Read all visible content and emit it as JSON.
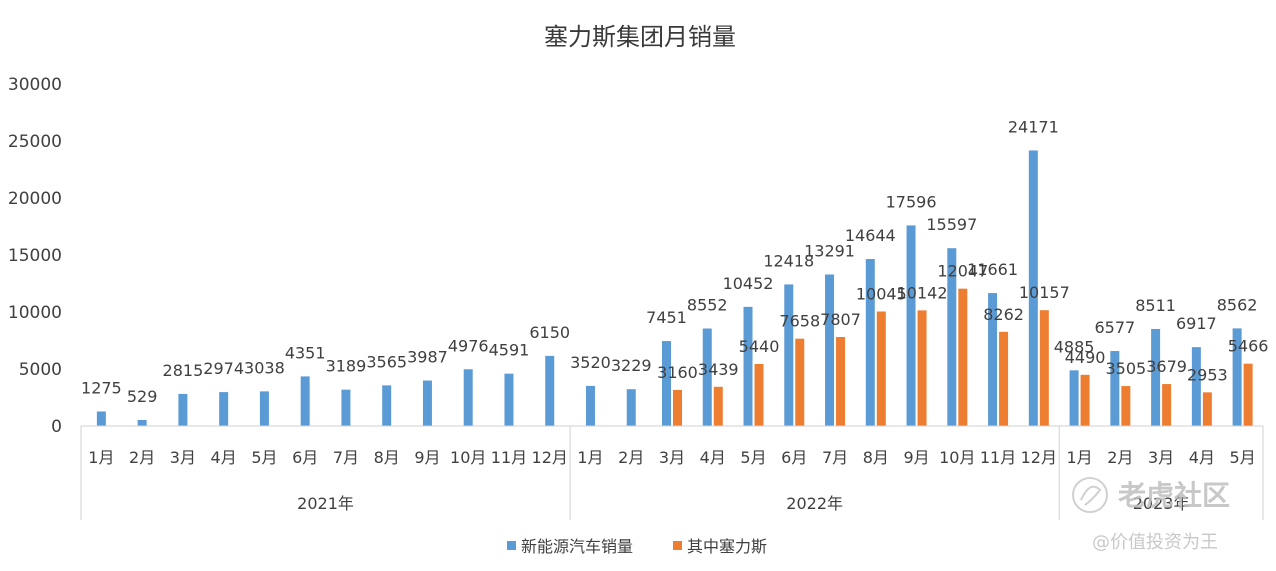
{
  "chart_data": {
    "type": "bar",
    "title": "塞力斯集团月销量",
    "ylim": [
      0,
      30000
    ],
    "yticks": [
      0,
      5000,
      10000,
      15000,
      20000,
      25000,
      30000
    ],
    "grid": false,
    "legend_position": "bottom",
    "year_groups": [
      {
        "label": "2021年",
        "count": 12
      },
      {
        "label": "2022年",
        "count": 12
      },
      {
        "label": "2023年",
        "count": 5
      }
    ],
    "categories": [
      "1月",
      "2月",
      "3月",
      "4月",
      "5月",
      "6月",
      "7月",
      "8月",
      "9月",
      "10月",
      "11月",
      "12月",
      "1月",
      "2月",
      "3月",
      "4月",
      "5月",
      "6月",
      "7月",
      "8月",
      "9月",
      "10月",
      "11月",
      "12月",
      "1月",
      "2月",
      "3月",
      "4月",
      "5月"
    ],
    "series": [
      {
        "name": "新能源汽车销量",
        "color": "#5b9bd5",
        "values": [
          1275,
          529,
          2815,
          2974,
          3038,
          4351,
          3189,
          3565,
          3987,
          4976,
          4591,
          6150,
          3520,
          3229,
          7451,
          8552,
          10452,
          12418,
          13291,
          14644,
          17596,
          15597,
          11661,
          24171,
          4885,
          6577,
          8511,
          6917,
          8562
        ]
      },
      {
        "name": "其中塞力斯",
        "color": "#ed7d31",
        "values": [
          null,
          null,
          null,
          null,
          null,
          null,
          null,
          null,
          null,
          null,
          null,
          null,
          null,
          null,
          3160,
          3439,
          5440,
          7658,
          7807,
          10045,
          10142,
          12047,
          8262,
          10157,
          4490,
          3505,
          3679,
          2953,
          5466
        ]
      }
    ]
  },
  "watermark": {
    "site": "老虎社区",
    "user": "@价值投资为王"
  }
}
